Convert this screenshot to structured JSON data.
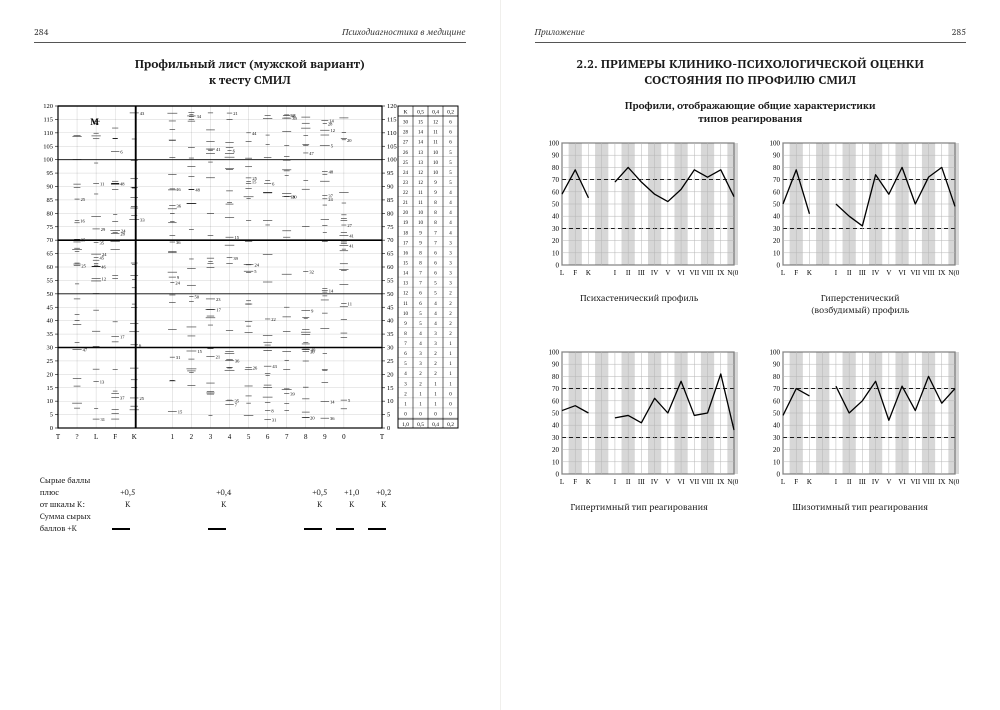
{
  "left": {
    "page_number": "284",
    "running_title": "Психодиагностика в медицине",
    "title_line1": "Профильный лист (мужской вариант)",
    "title_line2": "к тесту СМИЛ",
    "profile": {
      "ymin": 0,
      "ymax": 120,
      "ystep": 5,
      "scales_bottom": [
        "T",
        "?",
        "L",
        "F",
        "K",
        "",
        "1",
        "2",
        "3",
        "4",
        "5",
        "6",
        "7",
        "8",
        "9",
        "0",
        "",
        "T"
      ],
      "conv_header": [
        "K",
        "0,5",
        "0,4",
        "0,2"
      ],
      "conv_rows": [
        [
          30,
          15,
          12,
          6
        ],
        [
          28,
          14,
          11,
          6
        ],
        [
          27,
          14,
          11,
          6
        ],
        [
          26,
          13,
          10,
          5
        ],
        [
          25,
          13,
          10,
          5
        ],
        [
          24,
          12,
          10,
          5
        ],
        [
          23,
          12,
          9,
          5
        ],
        [
          22,
          11,
          9,
          4
        ],
        [
          21,
          11,
          8,
          4
        ],
        [
          20,
          10,
          8,
          4
        ],
        [
          19,
          10,
          8,
          4
        ],
        [
          18,
          9,
          7,
          4
        ],
        [
          17,
          9,
          7,
          3
        ],
        [
          16,
          8,
          6,
          3
        ],
        [
          15,
          8,
          6,
          3
        ],
        [
          14,
          7,
          6,
          3
        ],
        [
          13,
          7,
          5,
          3
        ],
        [
          12,
          6,
          5,
          2
        ],
        [
          11,
          6,
          4,
          2
        ],
        [
          10,
          5,
          4,
          2
        ],
        [
          9,
          5,
          4,
          2
        ],
        [
          8,
          4,
          3,
          2
        ],
        [
          7,
          4,
          3,
          1
        ],
        [
          6,
          3,
          2,
          1
        ],
        [
          5,
          3,
          2,
          1
        ],
        [
          4,
          2,
          2,
          1
        ],
        [
          3,
          2,
          1,
          1
        ],
        [
          2,
          1,
          1,
          0
        ],
        [
          1,
          1,
          1,
          0
        ],
        [
          0,
          0,
          0,
          0
        ]
      ],
      "conv_footer": [
        "1,0",
        "0,5",
        "0,4",
        "0,2"
      ],
      "m_label": "М",
      "k_coeffs": [
        "+0,5",
        "+0,4",
        "+0,5",
        "+1,0",
        "+0,2"
      ],
      "footer_labels": {
        "l1": "Сырые баллы",
        "l2": "плюс",
        "l3": "от шкалы K:",
        "l4": "Сумма сырых",
        "l5": "баллов +K"
      }
    }
  },
  "right": {
    "page_number": "285",
    "running_title": "Приложение",
    "h1_line1": "2.2. ПРИМЕРЫ КЛИНИКО-ПСИХОЛОГИЧЕСКОЙ ОЦЕНКИ",
    "h1_line2": "СОСТОЯНИЯ ПО ПРОФИЛЮ СМИЛ",
    "h2_line1": "Профили, отображающие общие характеристики",
    "h2_line2": "типов реагирования",
    "chart_axis": {
      "ymin": 0,
      "ymax": 100,
      "ystep": 10,
      "yticks": [
        0,
        10,
        20,
        30,
        40,
        50,
        60,
        70,
        80,
        90,
        100
      ],
      "xlabels": [
        "L",
        "F",
        "K",
        "",
        "I",
        "II",
        "III",
        "IV",
        "V",
        "VI",
        "VII",
        "VIII",
        "IX",
        "N(0)"
      ],
      "ref_dashed": [
        30,
        70
      ],
      "grid_stripe_color": "#d7d7d7",
      "grid_line_color": "#b5b5b5",
      "background": "#ffffff",
      "line_color": "#000000",
      "line_width": 1.3,
      "font_size": 7
    },
    "charts": [
      {
        "caption": "Психастенический профиль",
        "values": [
          58,
          78,
          55,
          null,
          68,
          80,
          68,
          58,
          52,
          62,
          78,
          72,
          78,
          56
        ]
      },
      {
        "caption_line1": "Гиперстенический",
        "caption_line2": "(возбудимый) профиль",
        "values": [
          50,
          78,
          42,
          null,
          50,
          40,
          32,
          74,
          58,
          80,
          50,
          72,
          80,
          48
        ]
      },
      {
        "caption": "Гипертимный тип реагирования",
        "values": [
          52,
          56,
          50,
          null,
          46,
          48,
          42,
          62,
          50,
          76,
          48,
          50,
          82,
          36
        ]
      },
      {
        "caption": "Шизотимный тип реагирования",
        "values": [
          48,
          70,
          64,
          null,
          72,
          50,
          60,
          76,
          44,
          72,
          52,
          80,
          58,
          70
        ]
      }
    ]
  }
}
